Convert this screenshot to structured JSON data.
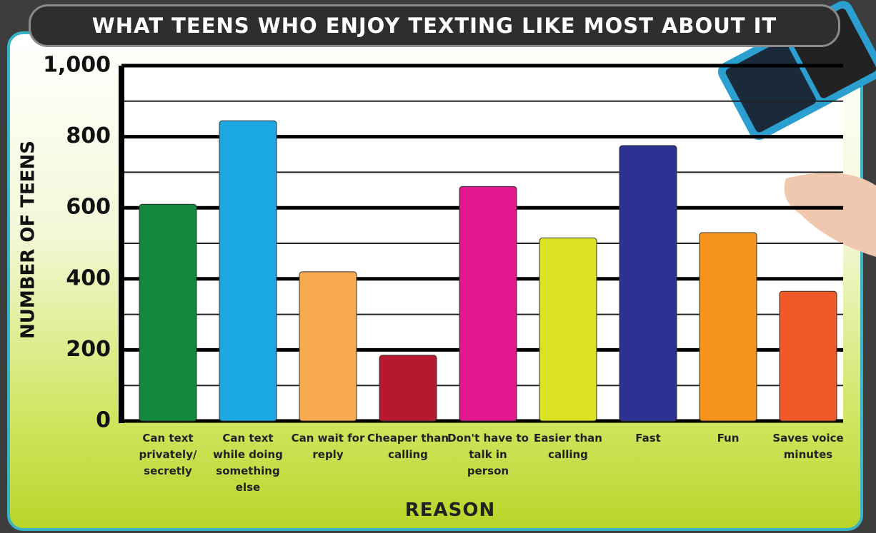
{
  "chart_data": {
    "type": "bar",
    "title": "WHAT TEENS WHO ENJOY TEXTING LIKE MOST ABOUT IT",
    "x_label": "REASON",
    "y_label": "NUMBER OF TEENS",
    "categories": [
      "Can text privately/ secretly",
      "Can text while doing something else",
      "Can wait for reply",
      "Cheaper than calling",
      "Don't have to talk in person",
      "Easier than calling",
      "Fast",
      "Fun",
      "Saves voice minutes"
    ],
    "values": [
      610,
      845,
      420,
      185,
      660,
      515,
      775,
      530,
      365
    ],
    "colors": [
      "#12883c",
      "#1ba8e2",
      "#f8aa50",
      "#b5182f",
      "#e2168d",
      "#dbe224",
      "#2d3192",
      "#f7941d",
      "#ef5a28"
    ],
    "ylim": [
      0,
      1000
    ],
    "yticks": [
      0,
      200,
      400,
      600,
      800,
      {
        "value": 1000,
        "label": "1,000"
      }
    ],
    "minor_yticks": [
      100,
      300,
      500,
      700,
      900
    ],
    "grid": true
  }
}
